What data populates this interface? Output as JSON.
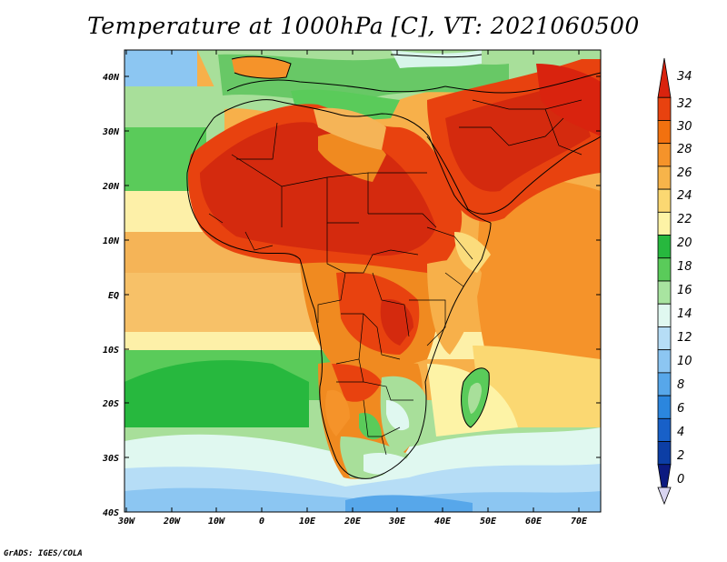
{
  "title": "Temperature at 1000hPa [C], VT: 2021060500",
  "credit": "GrADS: IGES/COLA",
  "lat_ticks": [
    "40N",
    "30N",
    "20N",
    "10N",
    "EQ",
    "10S",
    "20S",
    "30S",
    "40S"
  ],
  "lon_ticks": [
    "30W",
    "20W",
    "10W",
    "0",
    "10E",
    "20E",
    "30E",
    "40E",
    "50E",
    "60E",
    "70E"
  ],
  "colorbar": {
    "labels": [
      "34",
      "32",
      "30",
      "28",
      "26",
      "24",
      "22",
      "20",
      "18",
      "16",
      "14",
      "12",
      "10",
      "8",
      "6",
      "4",
      "2",
      "0"
    ],
    "colors": [
      "#d9230e",
      "#e8420f",
      "#f2710f",
      "#f5932a",
      "#f7b44a",
      "#fbd872",
      "#fdf3a6",
      "#27b83e",
      "#5acb5a",
      "#a8e4a0",
      "#e0f8f0",
      "#b6ddf6",
      "#8cc6f2",
      "#57a7ea",
      "#2b86de",
      "#1860c8",
      "#0c3ea5",
      "#0c1a80"
    ]
  },
  "palette": {
    "hot": "#d42a0e",
    "warm": "#ea5a14",
    "orange": "#f08a20",
    "lorange": "#f7b04a",
    "yellow": "#fbdc7c",
    "pale": "#fdf0a8",
    "green": "#2eb545",
    "lgreen": "#68c866",
    "vlgreen": "#a8df9a",
    "cyan": "#d8f5ea",
    "lblue": "#9fd2f2",
    "blue": "#5aa6e6"
  }
}
